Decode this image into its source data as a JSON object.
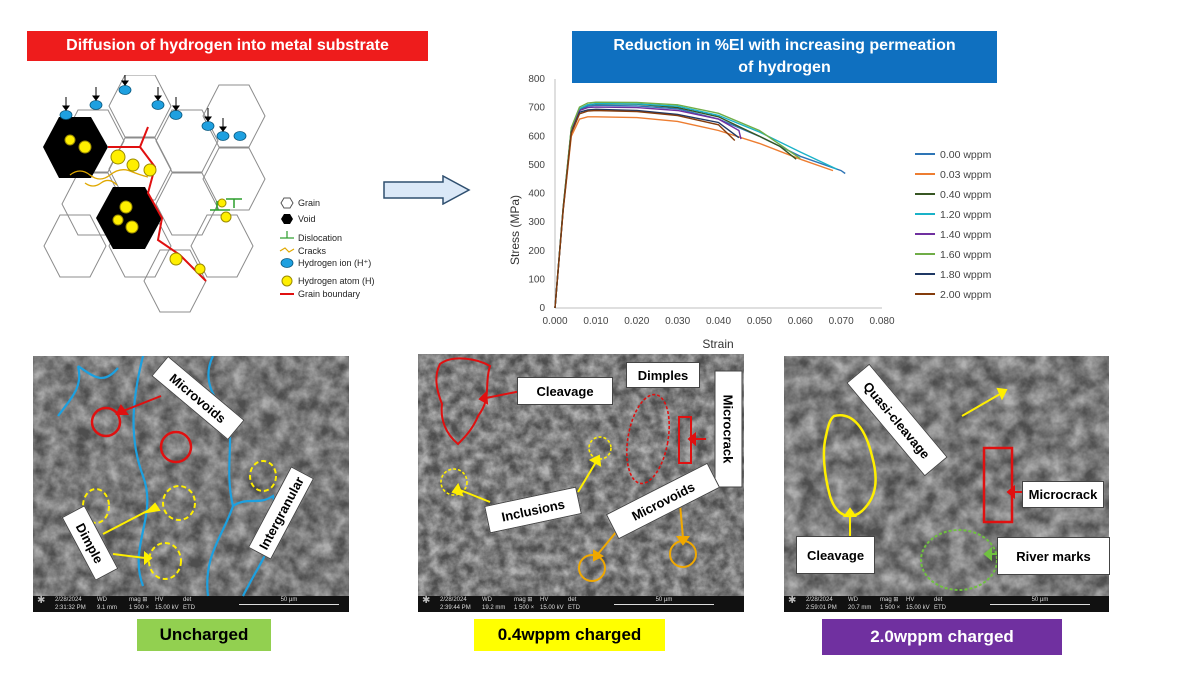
{
  "header": {
    "left_title": "Diffusion of hydrogen into metal substrate",
    "right_title_line1": "Reduction in %El with increasing permeation",
    "right_title_line2": "of hydrogen"
  },
  "legend_schematic": {
    "items": [
      {
        "label": "Grain",
        "icon": "hexagon-outline-icon"
      },
      {
        "label": "Void",
        "icon": "hexagon-filled-icon"
      },
      {
        "label": "Dislocation",
        "icon": "dislocation-icon"
      },
      {
        "label": "Cracks",
        "icon": "crack-icon"
      },
      {
        "label": "Hydrogen ion (H⁺)",
        "icon": "blue-ellipse-icon"
      },
      {
        "label": "Hydrogen atom (H)",
        "icon": "yellow-circle-icon"
      },
      {
        "label": "Grain boundary",
        "icon": "red-line-icon"
      }
    ]
  },
  "chart_data": {
    "type": "line",
    "xlabel": "Strain",
    "ylabel": "Stress (MPa)",
    "xlim": [
      0.0,
      0.08
    ],
    "ylim": [
      0,
      800
    ],
    "xticks": [
      "0.000",
      "0.010",
      "0.020",
      "0.030",
      "0.040",
      "0.050",
      "0.060",
      "0.070",
      "0.080"
    ],
    "yticks": [
      "0",
      "100",
      "200",
      "300",
      "400",
      "500",
      "600",
      "700",
      "800"
    ],
    "legend_position": "right",
    "series": [
      {
        "name": "0.00 wppm",
        "color": "#2e75b6",
        "x": [
          0,
          0.002,
          0.004,
          0.006,
          0.008,
          0.01,
          0.02,
          0.03,
          0.04,
          0.05,
          0.06,
          0.07,
          0.071
        ],
        "y": [
          0,
          350,
          620,
          690,
          705,
          708,
          706,
          696,
          660,
          600,
          530,
          480,
          470
        ]
      },
      {
        "name": "0.03 wppm",
        "color": "#ed7d31",
        "x": [
          0,
          0.002,
          0.004,
          0.006,
          0.008,
          0.01,
          0.02,
          0.03,
          0.04,
          0.05,
          0.06,
          0.068
        ],
        "y": [
          0,
          340,
          600,
          660,
          668,
          668,
          665,
          652,
          620,
          575,
          520,
          480
        ]
      },
      {
        "name": "0.40 wppm",
        "color": "#375623",
        "x": [
          0,
          0.002,
          0.004,
          0.006,
          0.008,
          0.01,
          0.02,
          0.03,
          0.04,
          0.05,
          0.055,
          0.059
        ],
        "y": [
          0,
          350,
          625,
          695,
          710,
          713,
          712,
          700,
          668,
          600,
          565,
          520
        ]
      },
      {
        "name": "1.20 wppm",
        "color": "#1ab2c8",
        "x": [
          0,
          0.002,
          0.004,
          0.006,
          0.008,
          0.01,
          0.02,
          0.03,
          0.04,
          0.05,
          0.06,
          0.069
        ],
        "y": [
          0,
          350,
          625,
          696,
          710,
          714,
          713,
          705,
          673,
          615,
          545,
          485
        ]
      },
      {
        "name": "1.40 wppm",
        "color": "#7030a0",
        "x": [
          0,
          0.002,
          0.004,
          0.006,
          0.008,
          0.01,
          0.02,
          0.03,
          0.04,
          0.045,
          0.0455
        ],
        "y": [
          0,
          348,
          620,
          690,
          700,
          702,
          700,
          690,
          660,
          620,
          590
        ]
      },
      {
        "name": "1.60 wppm",
        "color": "#70ad47",
        "x": [
          0,
          0.002,
          0.004,
          0.006,
          0.008,
          0.01,
          0.02,
          0.03,
          0.04,
          0.05,
          0.06
        ],
        "y": [
          0,
          352,
          630,
          702,
          716,
          719,
          718,
          710,
          680,
          620,
          522
        ]
      },
      {
        "name": "1.80 wppm",
        "color": "#1f3864",
        "x": [
          0,
          0.002,
          0.004,
          0.006,
          0.008,
          0.01,
          0.02,
          0.03,
          0.04,
          0.045
        ],
        "y": [
          0,
          345,
          615,
          684,
          692,
          694,
          690,
          676,
          648,
          595
        ]
      },
      {
        "name": "2.00 wppm",
        "color": "#843c0c",
        "x": [
          0,
          0.002,
          0.004,
          0.006,
          0.008,
          0.01,
          0.02,
          0.03,
          0.04,
          0.044
        ],
        "y": [
          0,
          345,
          610,
          678,
          688,
          690,
          686,
          672,
          640,
          585
        ]
      }
    ]
  },
  "sem_panels": [
    {
      "caption": "Uncharged",
      "caption_bg": "#92d050",
      "callouts": [
        "Microvoids",
        "Dimple",
        "Intergranular"
      ],
      "scale_bar": "50 µm",
      "info": {
        "date": "2/28/2024",
        "time": "2:31:32 PM",
        "wd": "9.1 mm",
        "mag": "1 500 ×",
        "hv": "15.00 kV",
        "det": "ETD"
      }
    },
    {
      "caption": "0.4wppm charged",
      "caption_bg": "#ffff00",
      "callouts": [
        "Cleavage",
        "Dimples",
        "Microcrack",
        "Inclusions",
        "Microvoids"
      ],
      "scale_bar": "50 µm",
      "info": {
        "date": "2/28/2024",
        "time": "2:39:44 PM",
        "wd": "19.2 mm",
        "mag": "1 500 ×",
        "hv": "15.00 kV",
        "det": "ETD"
      }
    },
    {
      "caption": "2.0wppm charged",
      "caption_bg": "#7030a0",
      "callouts": [
        "Quasi-cleavage",
        "Microcrack",
        "Cleavage",
        "River marks"
      ],
      "scale_bar": "50 µm",
      "info": {
        "date": "2/28/2024",
        "time": "2:59:01 PM",
        "wd": "20.7 mm",
        "mag": "1 500 ×",
        "hv": "15.00 kV",
        "det": "ETD"
      }
    }
  ],
  "info_labels": {
    "wd": "WD",
    "mag": "mag ⊞",
    "hv": "HV",
    "det": "det"
  }
}
